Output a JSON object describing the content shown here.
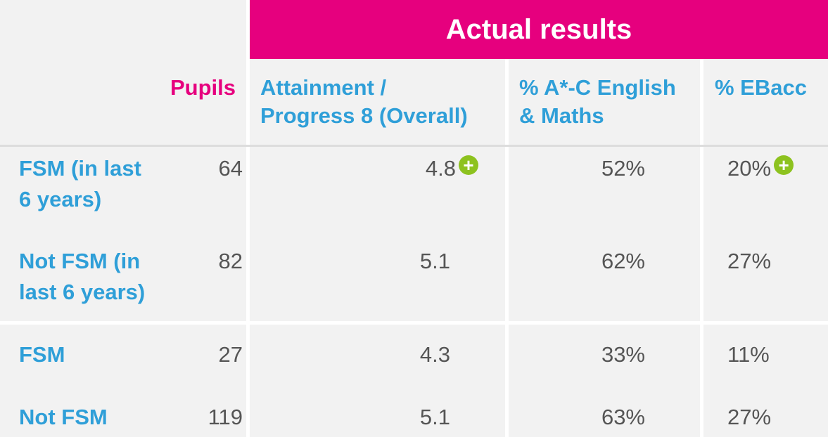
{
  "banner": {
    "title": "Actual results"
  },
  "headers": {
    "pupils": "Pupils",
    "attainment_line1": "Attainment /",
    "attainment_line2": "Progress 8 (Overall)",
    "english_line1": "% A*-C English",
    "english_line2": "& Maths",
    "ebacc": "% EBacc"
  },
  "rows": [
    {
      "label_line1": "FSM (in last",
      "label_line2": "6 years)",
      "pupils": "64",
      "attainment": "4.8",
      "attainment_plus": true,
      "english_maths": "52%",
      "ebacc": "20%",
      "ebacc_plus": true
    },
    {
      "label_line1": "Not FSM (in",
      "label_line2": "last 6 years)",
      "pupils": "82",
      "attainment": "5.1",
      "english_maths": "62%",
      "ebacc": "27%"
    },
    {
      "label_line1": "FSM",
      "label_line2": "",
      "pupils": "27",
      "attainment": "4.3",
      "english_maths": "33%",
      "ebacc": "11%"
    },
    {
      "label_line1": "Not FSM",
      "label_line2": "",
      "pupils": "119",
      "attainment": "5.1",
      "english_maths": "63%",
      "ebacc": "27%"
    }
  ],
  "icons": {
    "plus": "plus-circle-icon"
  },
  "colors": {
    "accent": "#e6007e",
    "label": "#2f9fd8",
    "plus": "#8dc21f"
  }
}
